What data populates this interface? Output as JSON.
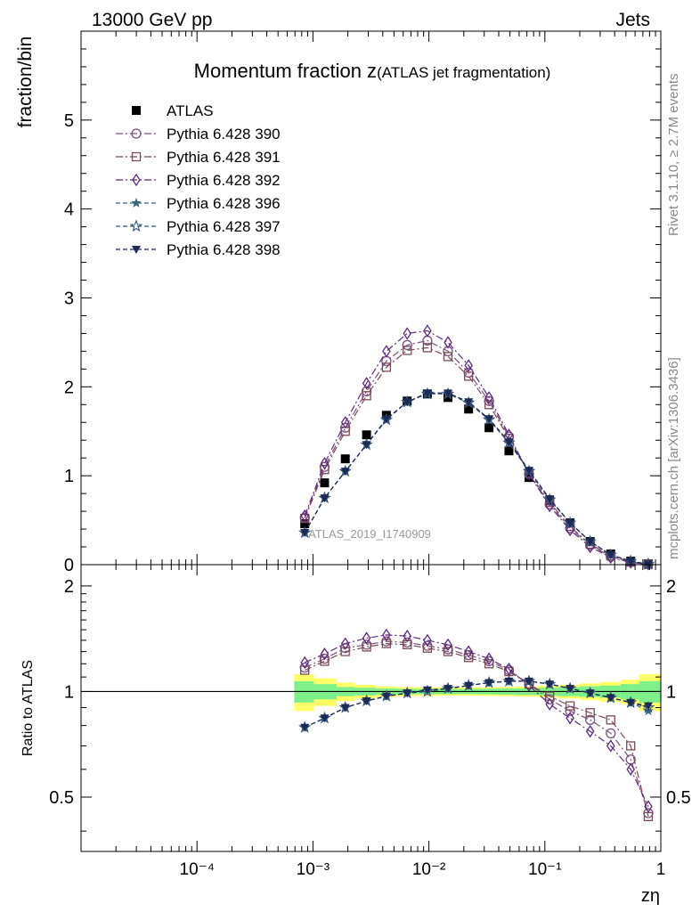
{
  "header": {
    "left": "13000 GeV pp",
    "right": "Jets"
  },
  "side_labels": {
    "rivet": "Rivet 3.1.10, ≥ 2.7M events",
    "mcplots": "mcplots.cern.ch [arXiv:1306.3436]"
  },
  "watermark": "ATLAS_2019_I1740909",
  "colors": {
    "atlas": "#000000",
    "p390": "#7b4f7e",
    "p391": "#7b4a56",
    "p392": "#5b2a7e",
    "p396": "#3d6680",
    "p397": "#36567a",
    "p398": "#1c2a55",
    "band_inner": "#7df08a",
    "band_outer": "#ffff66"
  },
  "chart_data": [
    {
      "type": "scatter",
      "panel": "main",
      "title_main": "Momentum fraction z",
      "title_sub": "(ATLAS jet fragmentation)",
      "ylabel": "fraction/bin",
      "xlabel": "zη",
      "xscale": "log",
      "xlim": [
        1e-05,
        1
      ],
      "ylim": [
        0,
        6
      ],
      "yticks": [
        0,
        1,
        2,
        3,
        4,
        5
      ],
      "ytick_labels": [
        "0",
        "1",
        "2",
        "3",
        "4",
        "5"
      ],
      "legend_position": "top-left",
      "x": [
        0.00085,
        0.00126,
        0.0019,
        0.0029,
        0.0043,
        0.0065,
        0.0097,
        0.0146,
        0.022,
        0.033,
        0.049,
        0.073,
        0.11,
        0.165,
        0.246,
        0.37,
        0.55,
        0.78
      ],
      "series": [
        {
          "name": "ATLAS",
          "color_key": "atlas",
          "marker": "square-filled",
          "line": "none",
          "values": [
            0.46,
            0.92,
            1.19,
            1.46,
            1.68,
            1.84,
            1.92,
            1.88,
            1.75,
            1.54,
            1.28,
            0.98,
            0.72,
            0.47,
            0.26,
            0.12,
            0.04,
            0.01
          ]
        },
        {
          "name": "Pythia 6.428 390",
          "color_key": "p390",
          "marker": "circle-open",
          "line": "dashdot",
          "values": [
            0.53,
            1.1,
            1.54,
            1.95,
            2.29,
            2.47,
            2.52,
            2.4,
            2.16,
            1.84,
            1.44,
            1.02,
            0.68,
            0.41,
            0.22,
            0.09,
            0.03,
            0.005
          ]
        },
        {
          "name": "Pythia 6.428 391",
          "color_key": "p391",
          "marker": "square-open",
          "line": "dashdot",
          "values": [
            0.52,
            1.07,
            1.5,
            1.9,
            2.22,
            2.41,
            2.44,
            2.34,
            2.12,
            1.8,
            1.42,
            1.03,
            0.7,
            0.43,
            0.23,
            0.1,
            0.03,
            0.005
          ]
        },
        {
          "name": "Pythia 6.428 392",
          "color_key": "p392",
          "marker": "diamond-open",
          "line": "dashdot",
          "values": [
            0.55,
            1.14,
            1.6,
            2.04,
            2.4,
            2.6,
            2.63,
            2.5,
            2.24,
            1.88,
            1.46,
            1.02,
            0.66,
            0.39,
            0.2,
            0.08,
            0.025,
            0.005
          ]
        },
        {
          "name": "Pythia 6.428 396",
          "color_key": "p396",
          "marker": "star-filled",
          "line": "dashed",
          "values": [
            0.36,
            0.75,
            1.05,
            1.35,
            1.63,
            1.83,
            1.93,
            1.93,
            1.83,
            1.64,
            1.38,
            1.06,
            0.74,
            0.47,
            0.26,
            0.11,
            0.04,
            0.005
          ]
        },
        {
          "name": "Pythia 6.428 397",
          "color_key": "p397",
          "marker": "star-open",
          "line": "dashed",
          "values": [
            0.36,
            0.75,
            1.05,
            1.35,
            1.63,
            1.83,
            1.92,
            1.92,
            1.82,
            1.63,
            1.37,
            1.05,
            0.73,
            0.47,
            0.26,
            0.11,
            0.04,
            0.005
          ]
        },
        {
          "name": "Pythia 6.428 398",
          "color_key": "p398",
          "marker": "triangle-down-filled",
          "line": "dashed",
          "values": [
            0.36,
            0.75,
            1.05,
            1.35,
            1.64,
            1.83,
            1.93,
            1.93,
            1.83,
            1.64,
            1.38,
            1.06,
            0.74,
            0.47,
            0.26,
            0.11,
            0.04,
            0.005
          ]
        }
      ]
    },
    {
      "type": "scatter",
      "panel": "ratio",
      "ylabel": "Ratio to ATLAS",
      "xlabel": "zη",
      "xscale": "log",
      "xlim": [
        1e-05,
        1
      ],
      "ylim": [
        0.35,
        2.3
      ],
      "yscale": "log",
      "yticks": [
        0.5,
        1,
        2
      ],
      "ytick_labels": [
        "0.5",
        "1",
        "2"
      ],
      "xticks": [
        0.0001,
        0.001,
        0.01,
        0.1,
        1
      ],
      "xtick_labels": [
        "10⁻⁴",
        "10⁻³",
        "10⁻²",
        "10⁻¹",
        "1"
      ],
      "band_edges": [
        0.00069,
        0.00102,
        0.0016,
        0.0023,
        0.0035,
        0.0052,
        0.0078,
        0.0117,
        0.0175,
        0.026,
        0.039,
        0.058,
        0.088,
        0.13,
        0.2,
        0.3,
        0.45,
        0.65,
        1.0
      ],
      "band_inner": [
        0.07,
        0.05,
        0.03,
        0.025,
        0.02,
        0.018,
        0.017,
        0.017,
        0.017,
        0.018,
        0.02,
        0.022,
        0.025,
        0.03,
        0.035,
        0.04,
        0.05,
        0.07
      ],
      "band_outer": [
        0.12,
        0.09,
        0.06,
        0.045,
        0.035,
        0.03,
        0.028,
        0.027,
        0.027,
        0.028,
        0.03,
        0.033,
        0.038,
        0.045,
        0.055,
        0.065,
        0.08,
        0.12
      ],
      "x": [
        0.00085,
        0.00126,
        0.0019,
        0.0029,
        0.0043,
        0.0065,
        0.0097,
        0.0146,
        0.022,
        0.033,
        0.049,
        0.073,
        0.11,
        0.165,
        0.246,
        0.37,
        0.55,
        0.78
      ],
      "series": [
        {
          "name": "Pythia 6.428 390",
          "color_key": "p390",
          "marker": "circle-open",
          "line": "dashdot",
          "values": [
            1.17,
            1.24,
            1.33,
            1.36,
            1.39,
            1.38,
            1.35,
            1.32,
            1.27,
            1.22,
            1.15,
            1.05,
            0.95,
            0.88,
            0.83,
            0.76,
            0.64,
            0.45
          ]
        },
        {
          "name": "Pythia 6.428 391",
          "color_key": "p391",
          "marker": "square-open",
          "line": "dashdot",
          "values": [
            1.15,
            1.22,
            1.3,
            1.34,
            1.37,
            1.36,
            1.33,
            1.3,
            1.25,
            1.2,
            1.14,
            1.05,
            0.97,
            0.91,
            0.87,
            0.83,
            0.7,
            0.44
          ]
        },
        {
          "name": "Pythia 6.428 392",
          "color_key": "p392",
          "marker": "diamond-open",
          "line": "dashdot",
          "values": [
            1.21,
            1.28,
            1.37,
            1.42,
            1.45,
            1.44,
            1.4,
            1.36,
            1.3,
            1.24,
            1.16,
            1.04,
            0.92,
            0.84,
            0.77,
            0.7,
            0.6,
            0.47
          ]
        },
        {
          "name": "Pythia 6.428 396",
          "color_key": "p396",
          "marker": "star-filled",
          "line": "dashed",
          "values": [
            0.79,
            0.84,
            0.9,
            0.94,
            0.97,
            0.99,
            1.01,
            1.02,
            1.04,
            1.06,
            1.07,
            1.07,
            1.05,
            1.02,
            0.99,
            0.96,
            0.93,
            0.88
          ]
        },
        {
          "name": "Pythia 6.428 397",
          "color_key": "p397",
          "marker": "star-open",
          "line": "dashed",
          "values": [
            0.79,
            0.84,
            0.9,
            0.94,
            0.97,
            0.99,
            1.0,
            1.02,
            1.04,
            1.06,
            1.07,
            1.07,
            1.05,
            1.02,
            0.99,
            0.96,
            0.93,
            0.9
          ]
        },
        {
          "name": "Pythia 6.428 398",
          "color_key": "p398",
          "marker": "triangle-down-filled",
          "line": "dashed",
          "values": [
            0.79,
            0.84,
            0.9,
            0.94,
            0.97,
            0.99,
            1.01,
            1.02,
            1.04,
            1.06,
            1.07,
            1.07,
            1.05,
            1.02,
            0.99,
            0.96,
            0.93,
            0.91
          ]
        }
      ]
    }
  ]
}
